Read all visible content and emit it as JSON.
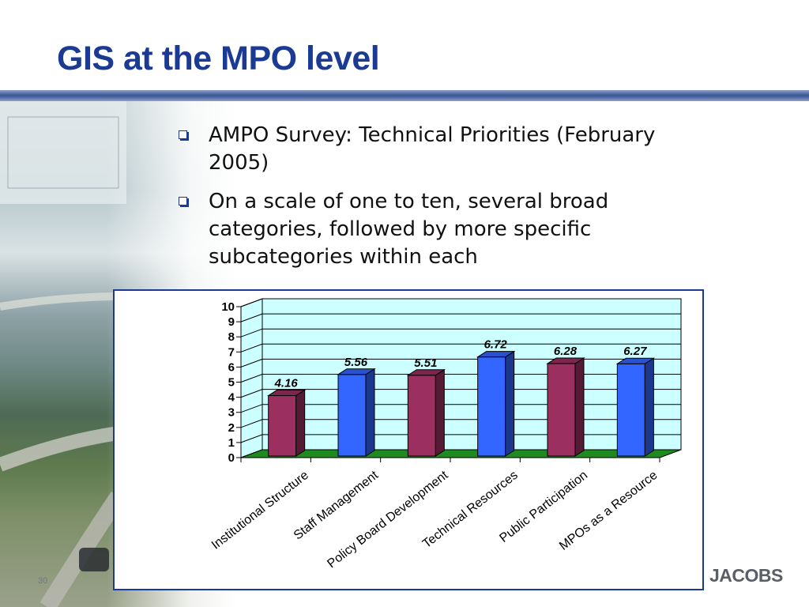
{
  "slide": {
    "title": "GIS at the MPO level",
    "page_number": "30",
    "logo": "JACOBS"
  },
  "bullets": [
    {
      "text": "AMPO Survey:  Technical Priorities (February 2005)"
    },
    {
      "text": "On a scale of one to ten, several broad categories, followed by more specific subcategories within each"
    }
  ],
  "colors": {
    "title": "#1b3a94",
    "plot_background": "#ccffff",
    "floor": "#1f8a1f",
    "bar_maroon": "#9b3060",
    "bar_blue": "#3366ff"
  },
  "chart_data": {
    "type": "bar",
    "title": "",
    "xlabel": "",
    "ylabel": "",
    "ylim": [
      0,
      10
    ],
    "yticks": [
      "0",
      "1",
      "2",
      "3",
      "4",
      "5",
      "6",
      "7",
      "8",
      "9",
      "10"
    ],
    "grid": true,
    "legend": "none",
    "categories": [
      "Institutional Structure",
      "Staff Management",
      "Policy Board Development",
      "Technical Resources",
      "Public Participation",
      "MPOs as a Resource"
    ],
    "values": [
      4.16,
      5.56,
      5.51,
      6.72,
      6.28,
      6.27
    ],
    "value_labels": [
      "4.16",
      "5.56",
      "5.51",
      "6.72",
      "6.28",
      "6.27"
    ],
    "bar_colors": [
      "#9b3060",
      "#3366ff",
      "#9b3060",
      "#3366ff",
      "#9b3060",
      "#3366ff"
    ]
  }
}
